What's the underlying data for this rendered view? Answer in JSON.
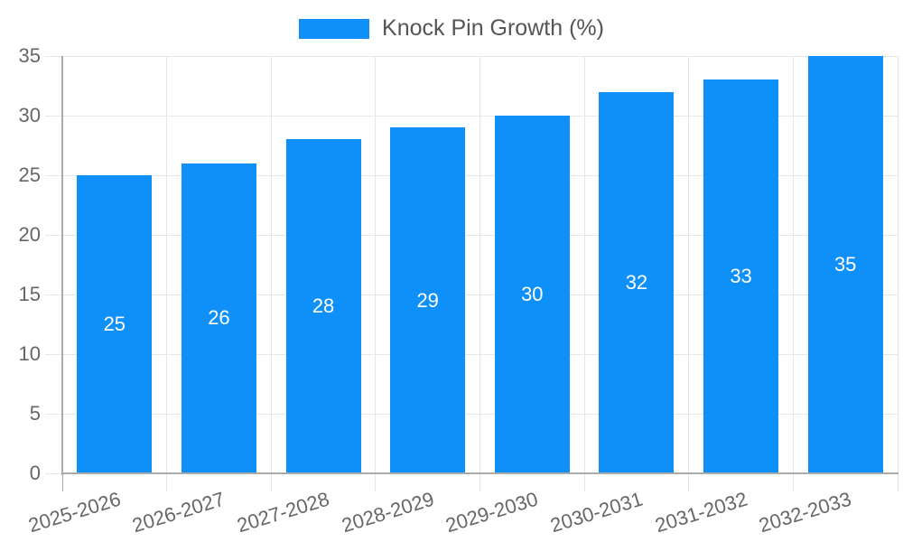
{
  "legend": {
    "items": [
      {
        "label": "Knock Pin Growth (%)"
      }
    ]
  },
  "chart_data": {
    "type": "bar",
    "title": "",
    "xlabel": "",
    "ylabel": "",
    "categories": [
      "2025-2026",
      "2026-2027",
      "2027-2028",
      "2028-2029",
      "2029-2030",
      "2030-2031",
      "2031-2032",
      "2032-2033"
    ],
    "series": [
      {
        "name": "Knock Pin Growth (%)",
        "values": [
          25,
          26,
          28,
          29,
          30,
          32,
          33,
          35
        ]
      }
    ],
    "value_labels_shown": true,
    "ylim": [
      0,
      35
    ],
    "yticks": [
      0,
      5,
      10,
      15,
      20,
      25,
      30,
      35
    ],
    "grid": true,
    "legend_position": "top",
    "x_label_rotation_deg": -17,
    "colors": {
      "bar": "#0e90f8",
      "value_label": "#ffffff",
      "grid_line": "#e6e6e6",
      "axis_line": "#ababab",
      "tick_label": "#666666",
      "legend_label": "#555555",
      "background": "#ffffff"
    }
  }
}
